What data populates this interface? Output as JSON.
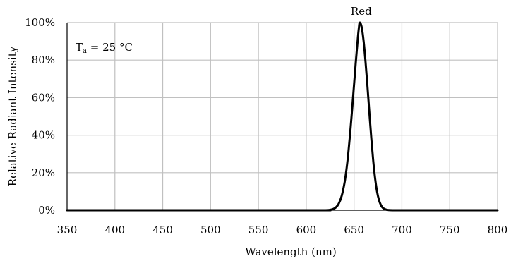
{
  "chart_data": {
    "type": "line",
    "xlabel": "Wavelength (nm)",
    "ylabel": "Relative Radiant Intensity",
    "xlim": [
      350,
      800
    ],
    "ylim": [
      0,
      100
    ],
    "x_ticks": [
      350,
      400,
      450,
      500,
      550,
      600,
      650,
      700,
      750,
      800
    ],
    "y_ticks": [
      0,
      20,
      40,
      60,
      80,
      100
    ],
    "y_tick_labels": [
      "0%",
      "20%",
      "40%",
      "60%",
      "80%",
      "100%"
    ],
    "grid": true,
    "annotation": {
      "symbol": "T",
      "subscript": "a",
      "text": " = 25 °C"
    },
    "series": [
      {
        "name": "Red",
        "color": "#000000",
        "x": [
          350,
          600,
          620,
          625,
          628,
          631,
          634,
          637,
          640,
          642,
          644,
          646,
          648,
          650,
          652,
          654,
          655,
          656,
          658,
          660,
          662,
          664,
          666,
          668,
          670,
          672,
          674,
          676,
          678,
          680,
          683,
          686,
          690,
          700,
          800
        ],
        "y": [
          0,
          0,
          0,
          0.2,
          0.6,
          1.5,
          3.5,
          7.5,
          14.5,
          21.5,
          30.5,
          41.5,
          54,
          67,
          80,
          92,
          97,
          100,
          97.5,
          90,
          79,
          66,
          52,
          38.5,
          26.5,
          17,
          10,
          5.5,
          2.8,
          1.3,
          0.4,
          0.1,
          0,
          0,
          0
        ]
      }
    ]
  }
}
